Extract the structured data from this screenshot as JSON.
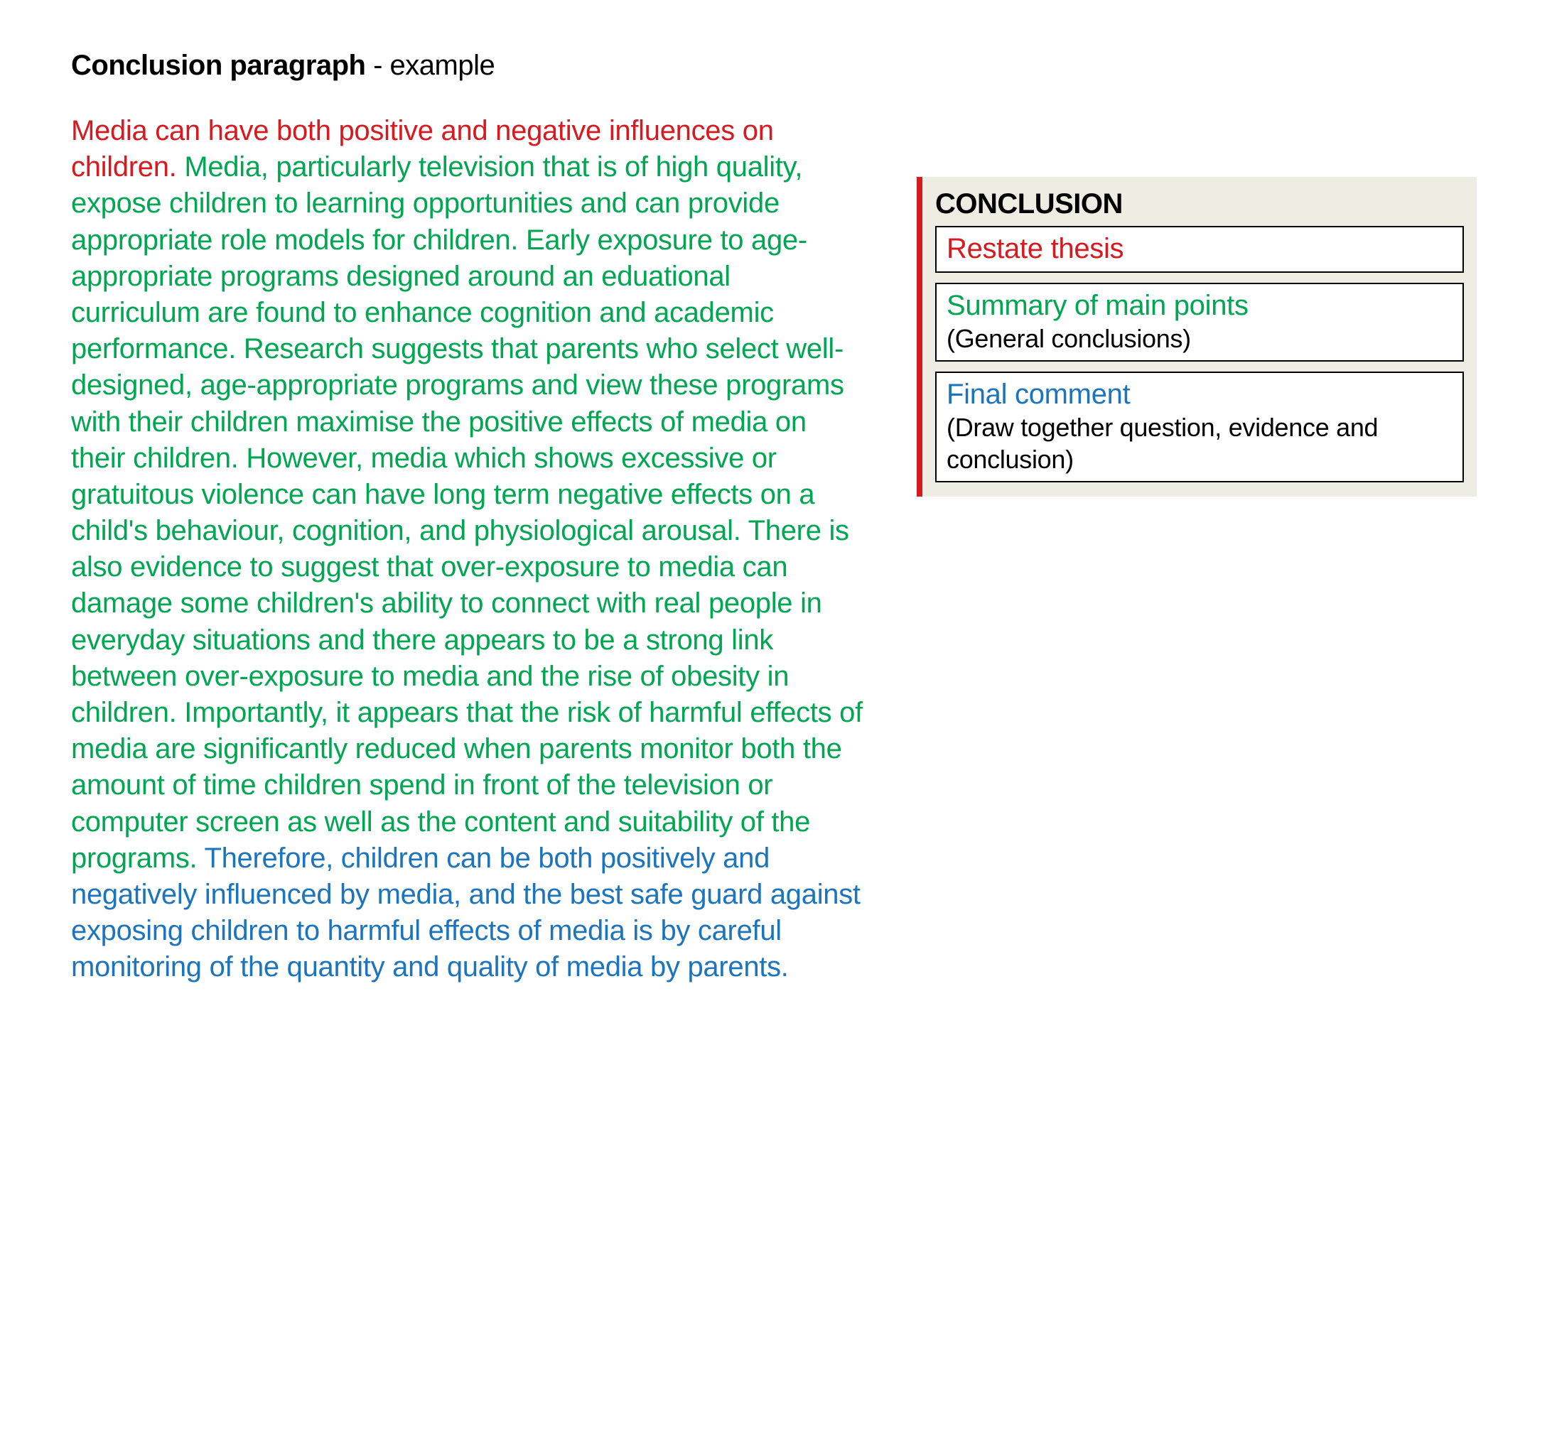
{
  "colors": {
    "red": "#d71920",
    "green": "#00a651",
    "blue": "#1c75bc",
    "legend_bg": "#edede3"
  },
  "heading": {
    "bold": "Conclusion paragraph",
    "light": " - example"
  },
  "paragraph": {
    "thesis": "Media can have both positive and negative influences on children.",
    "summary": "  Media, particularly television that is of high quality, expose children to learning opportunities and can provide appropriate role models for children.  Early exposure to age-appropriate programs designed around an eduational curriculum are found to enhance cognition and academic performance.  Research suggests that parents who select well-designed, age-appropriate programs and view these programs with their children maximise the positive effects of media on their children.  However, media which shows excessive or gratuitous violence can have long term negative effects on a child's behaviour, cognition, and physiological arousal.  There is also evidence to suggest that over-exposure to media can damage some children's ability to connect with real people in everyday situations and there appears to be a strong link between over-exposure to media and the rise of obesity in children.  Importantly, it appears that the risk of harmful effects of media are significantly reduced when parents monitor both the amount of time children spend in front of the television or computer screen as well as the content and suitability of the programs.",
    "final": "  Therefore, children can be both positively and negatively influenced by media, and the best safe guard against exposing children to harmful effects of media is by careful monitoring of the quantity and quality of media by parents."
  },
  "legend": {
    "title": "CONCLUSION",
    "items": [
      {
        "label": "Restate thesis",
        "sub": "",
        "color": "red"
      },
      {
        "label": "Summary of main points",
        "sub": "(General conclusions)",
        "color": "green"
      },
      {
        "label": "Final comment",
        "sub": "(Draw together question, evidence and conclusion)",
        "color": "blue"
      }
    ]
  }
}
